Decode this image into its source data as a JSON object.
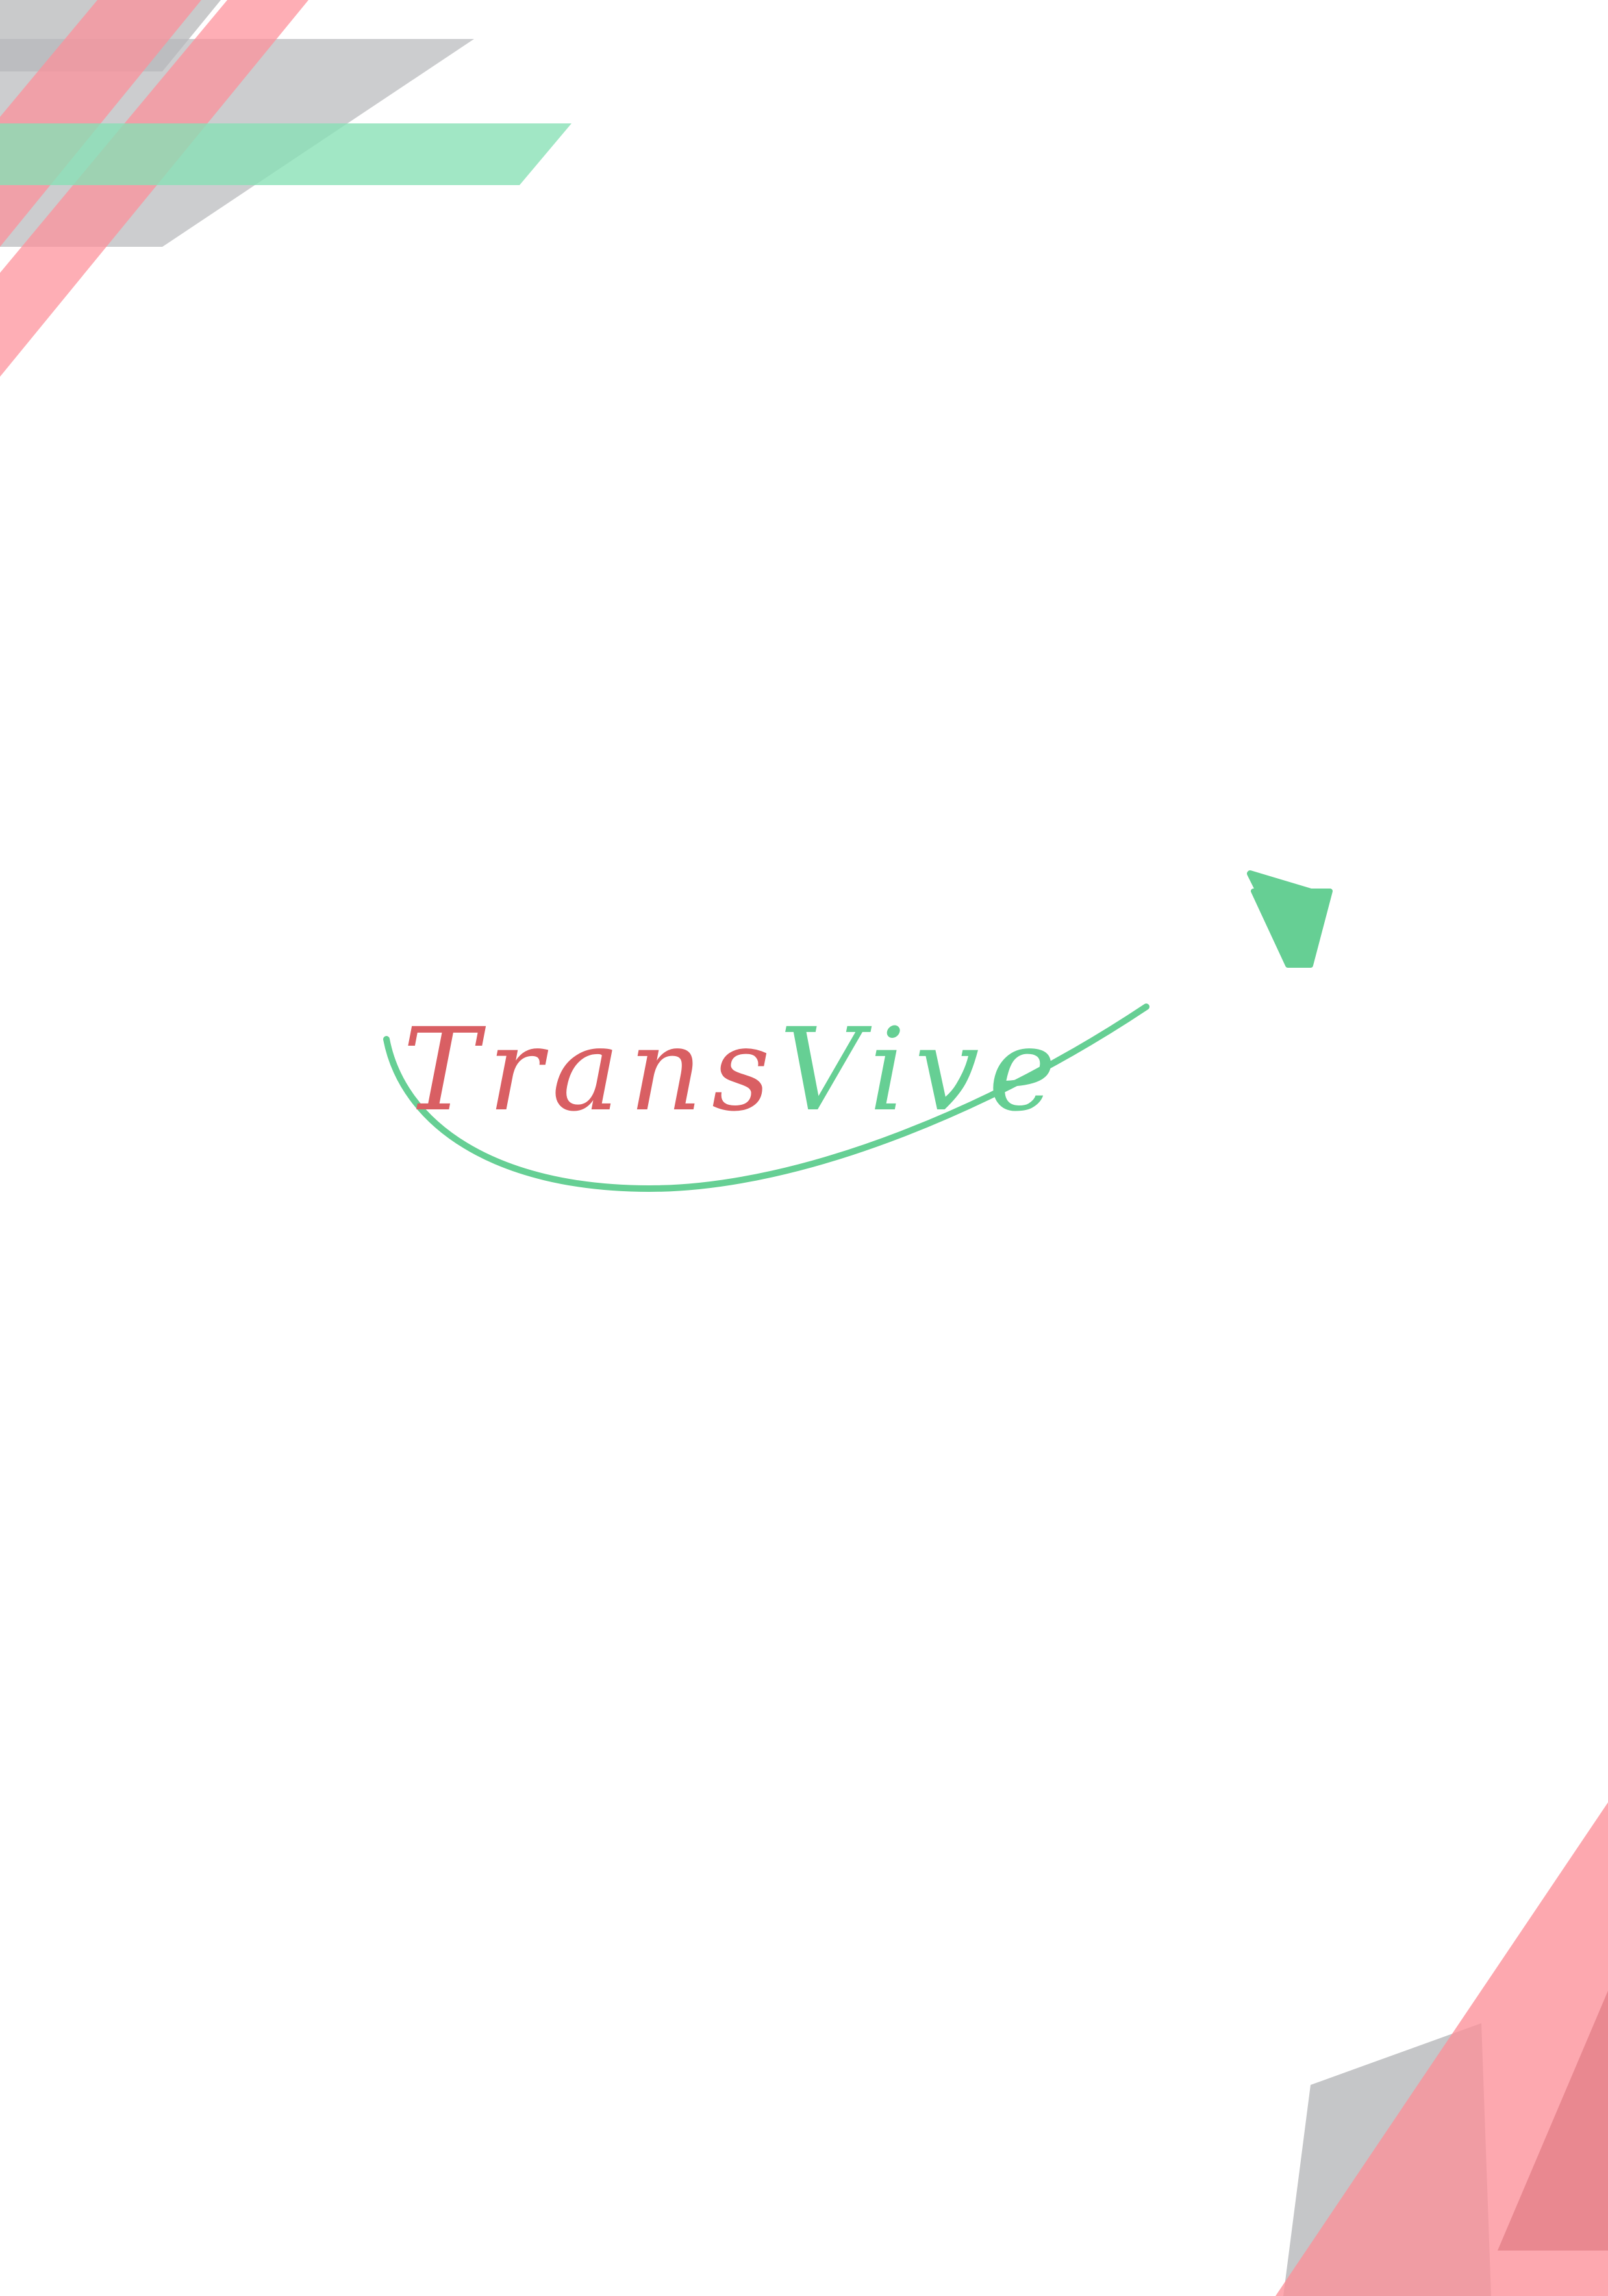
{
  "logo": {
    "part1": "Trans",
    "part2": "Vive",
    "text_colors": {
      "part1": "#d95f63",
      "part2": "#66cf94"
    },
    "arrow_color": "#66cf94",
    "icon": "upward-curved-arrow-icon"
  },
  "decorations": {
    "corners": [
      "top-left",
      "bottom-right"
    ],
    "colors": {
      "gray": "#b7b8ba",
      "pink": "#fd8f98",
      "green": "#86e0b5",
      "dark_pink": "#e07b83"
    }
  }
}
